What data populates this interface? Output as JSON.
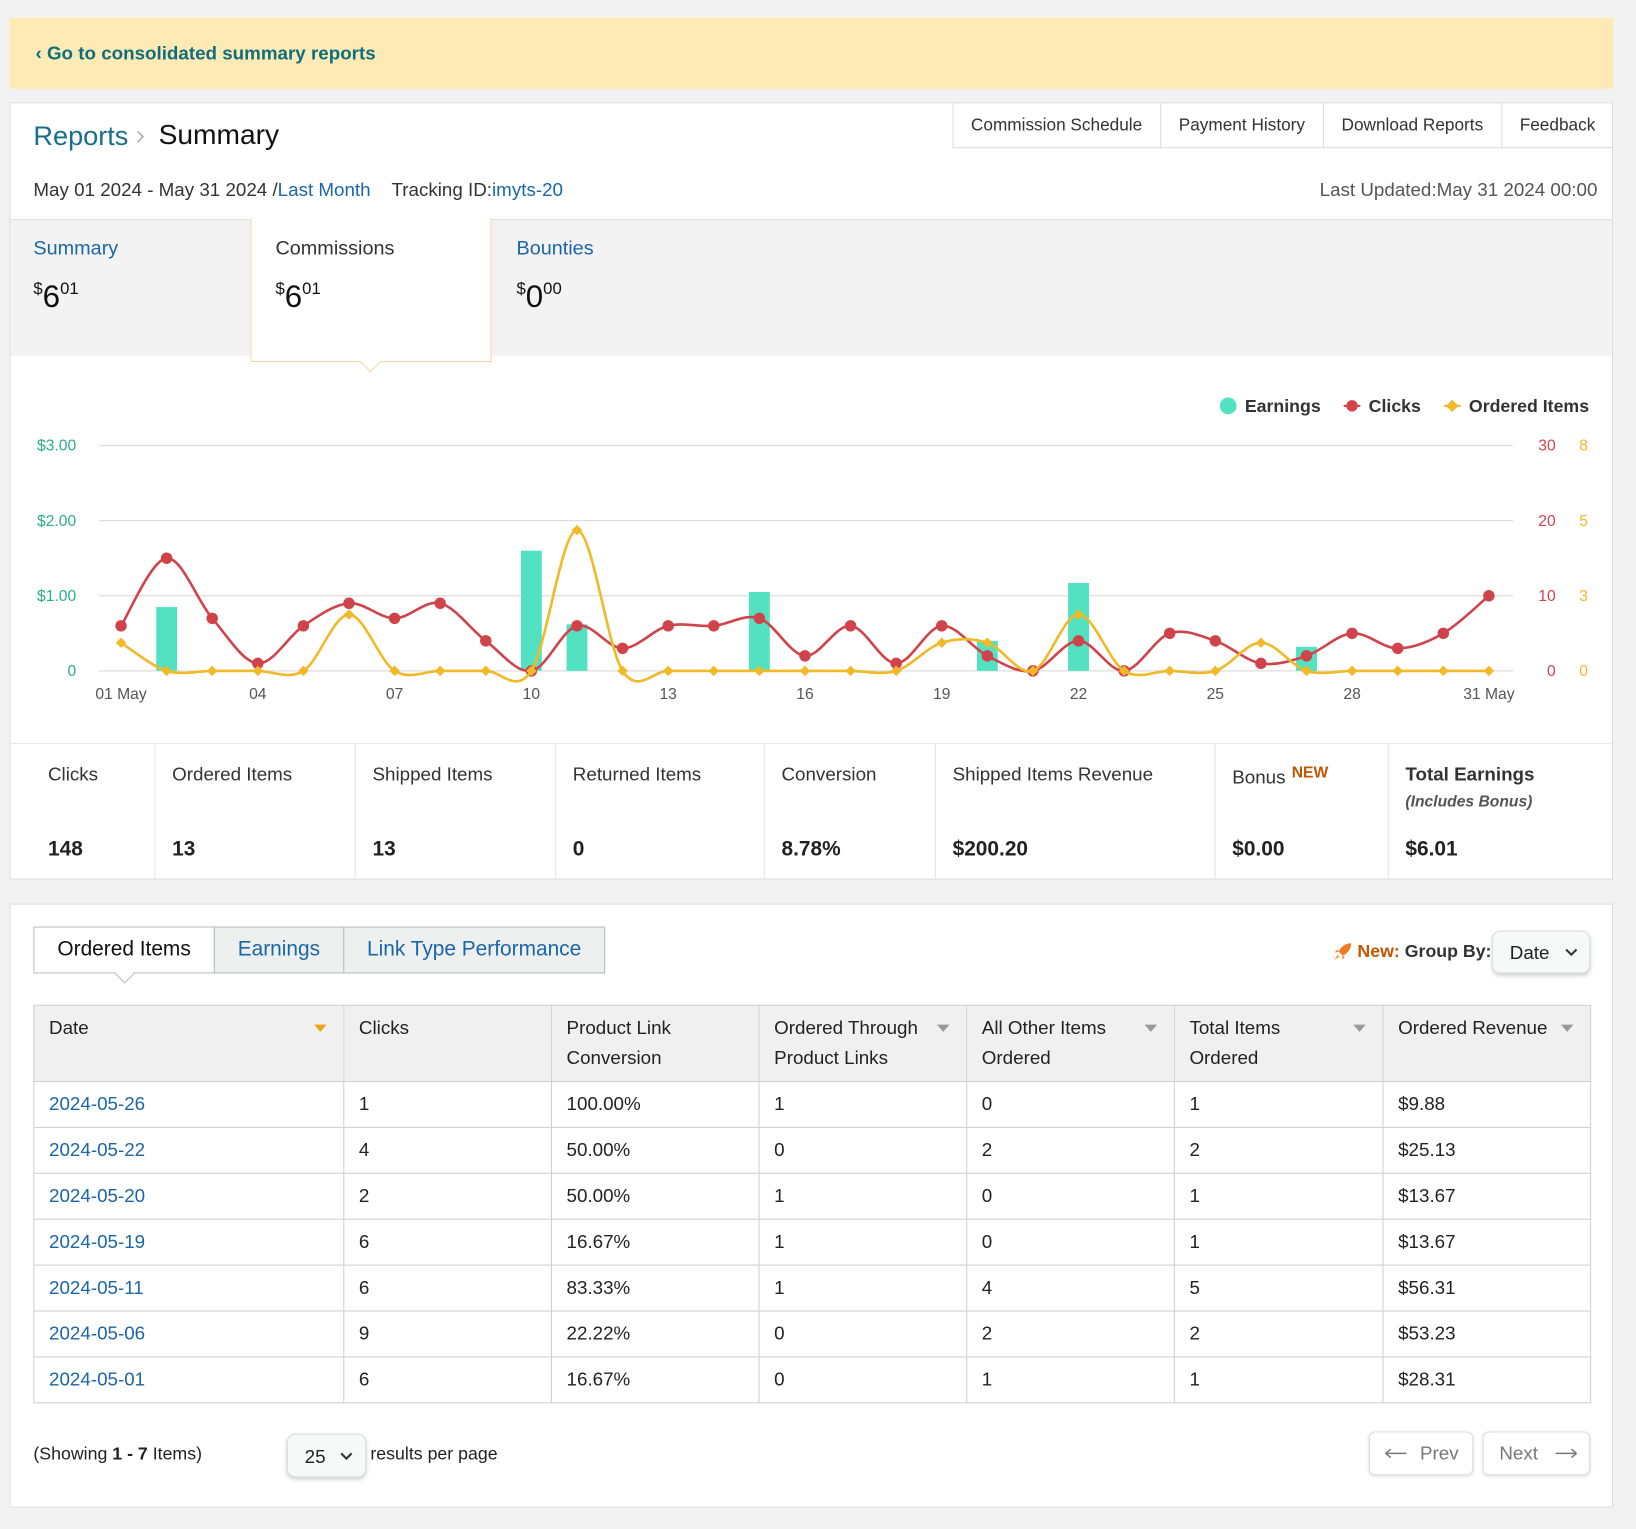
{
  "banner": {
    "link": "‹ Go to consolidated summary reports"
  },
  "header": {
    "breadcrumb": "Reports",
    "title": "Summary",
    "date_range": "May 01 2024 - May 31 2024 /",
    "period": "Last Month",
    "tracking_label": "Tracking ID:",
    "tracking_id": "imyts-20",
    "last_updated": "Last Updated:May 31 2024 00:00",
    "nav": [
      "Commission Schedule",
      "Payment History",
      "Download Reports",
      "Feedback"
    ]
  },
  "summary_tabs": [
    {
      "label": "Summary",
      "symbol": "$",
      "whole": "6",
      "cents": "01"
    },
    {
      "label": "Commissions",
      "symbol": "$",
      "whole": "6",
      "cents": "01"
    },
    {
      "label": "Bounties",
      "symbol": "$",
      "whole": "0",
      "cents": "00"
    }
  ],
  "chart_data": {
    "type": "combo",
    "legend": "top-right",
    "grid": true,
    "categories": [
      "01 May",
      null,
      null,
      "04",
      null,
      null,
      "07",
      null,
      null,
      "10",
      null,
      null,
      "13",
      null,
      null,
      "16",
      null,
      null,
      "19",
      null,
      null,
      "22",
      null,
      null,
      "25",
      null,
      null,
      "28",
      null,
      null,
      "31 May"
    ],
    "series": [
      {
        "name": "Earnings",
        "type": "bar",
        "color": "#52e2c2",
        "values": [
          0,
          0.85,
          0,
          0,
          0,
          0,
          0,
          0,
          0,
          1.6,
          0.62,
          0,
          0,
          0,
          1.05,
          0,
          0,
          0,
          0,
          0.4,
          0,
          1.17,
          0,
          0,
          0,
          0,
          0.32,
          0,
          0,
          0,
          0
        ]
      },
      {
        "name": "Clicks",
        "type": "line",
        "marker": "circle",
        "color": "#d0434a",
        "axis": "y2",
        "values": [
          6,
          15,
          7,
          1,
          6,
          9,
          7,
          9,
          4,
          0,
          6,
          3,
          6,
          6,
          7,
          2,
          6,
          1,
          6,
          2,
          0,
          4,
          0,
          5,
          4,
          1,
          2,
          5,
          3,
          5,
          10
        ]
      },
      {
        "name": "Ordered Items",
        "type": "line",
        "marker": "diamond",
        "color": "#f1b928",
        "axis": "y3",
        "values": [
          1,
          0,
          0,
          0,
          0,
          2,
          0,
          0,
          0,
          0,
          5,
          0,
          0,
          0,
          0,
          0,
          0,
          0,
          1,
          1,
          0,
          2,
          0,
          0,
          0,
          1,
          0,
          0,
          0,
          0,
          0
        ]
      }
    ],
    "ylim": [
      0,
      3
    ],
    "yticks": [
      0,
      {
        "value": 1,
        "label": "$1.00"
      },
      {
        "value": 2,
        "label": "$2.00"
      },
      {
        "value": 3,
        "label": "$3.00"
      }
    ],
    "y2lim": [
      0,
      30
    ],
    "y2ticks": [
      0,
      10,
      20,
      30
    ],
    "y3lim": [
      0,
      8
    ],
    "y3ticks": [
      0,
      {
        "value": 2.667,
        "label": "3"
      },
      {
        "value": 5.333,
        "label": "5"
      },
      8
    ]
  },
  "stats": [
    {
      "label": "Clicks",
      "value": "148"
    },
    {
      "label": "Ordered Items",
      "value": "13"
    },
    {
      "label": "Shipped Items",
      "value": "13"
    },
    {
      "label": "Returned Items",
      "value": "0"
    },
    {
      "label": "Conversion",
      "value": "8.78%"
    },
    {
      "label": "Shipped Items Revenue",
      "value": "$200.20"
    },
    {
      "label": "Bonus",
      "badge": "NEW",
      "value": "$0.00"
    },
    {
      "label": "Total Earnings",
      "note": "(Includes Bonus)",
      "value": "$6.01"
    }
  ],
  "tabs": [
    "Ordered Items",
    "Earnings",
    "Link Type Performance"
  ],
  "group_by": {
    "new": "New:",
    "label": "Group By:",
    "value": "Date"
  },
  "table": {
    "columns": [
      "Date",
      "Clicks",
      "Product Link Conversion",
      "Ordered Through Product Links",
      "All Other Items Ordered",
      "Total Items Ordered",
      "Ordered Revenue"
    ],
    "rows": [
      [
        "2024-05-26",
        "1",
        "100.00%",
        "1",
        "0",
        "1",
        "$9.88"
      ],
      [
        "2024-05-22",
        "4",
        "50.00%",
        "0",
        "2",
        "2",
        "$25.13"
      ],
      [
        "2024-05-20",
        "2",
        "50.00%",
        "1",
        "0",
        "1",
        "$13.67"
      ],
      [
        "2024-05-19",
        "6",
        "16.67%",
        "1",
        "0",
        "1",
        "$13.67"
      ],
      [
        "2024-05-11",
        "6",
        "83.33%",
        "1",
        "4",
        "5",
        "$56.31"
      ],
      [
        "2024-05-06",
        "9",
        "22.22%",
        "0",
        "2",
        "2",
        "$53.23"
      ],
      [
        "2024-05-01",
        "6",
        "16.67%",
        "0",
        "1",
        "1",
        "$28.31"
      ]
    ]
  },
  "footer": {
    "showing_prefix": "(Showing ",
    "range": "1 - 7",
    "showing_suffix": " Items)",
    "per_page": "25",
    "per_page_label": "results per page",
    "prev": "Prev",
    "next": "Next"
  }
}
